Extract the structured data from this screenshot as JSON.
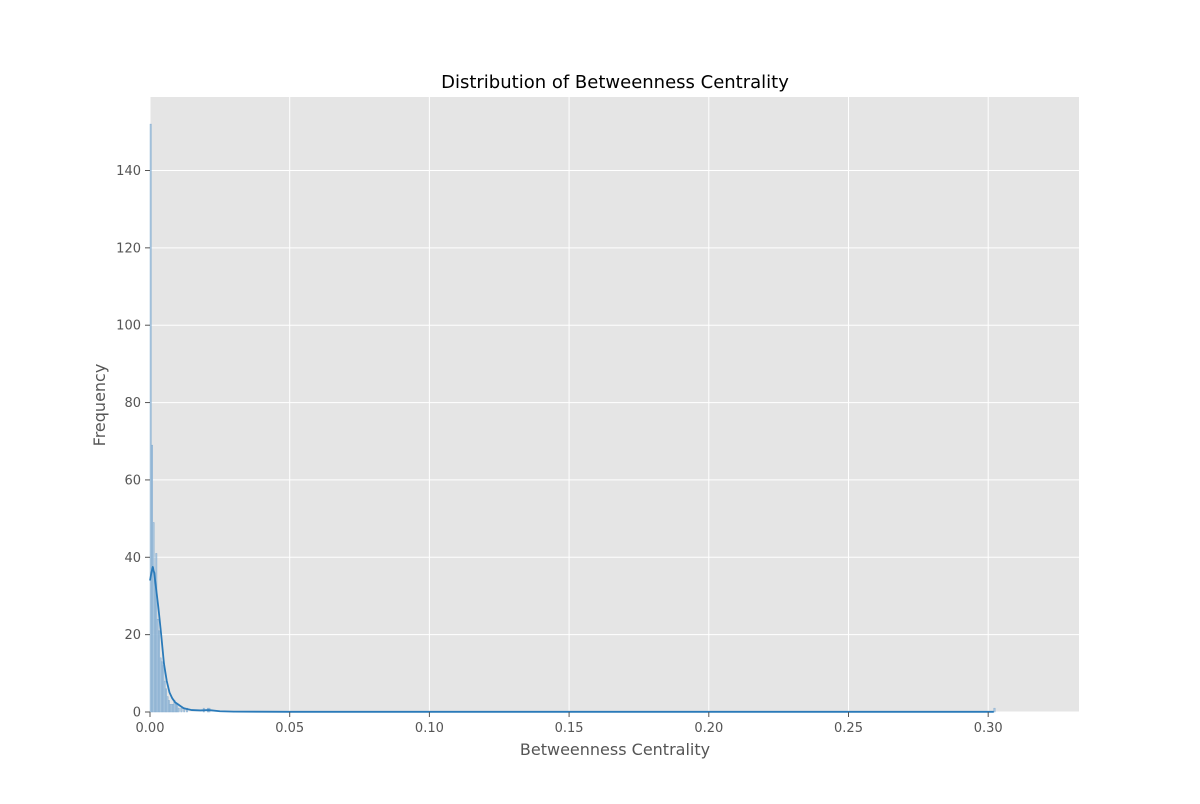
{
  "chart_data": {
    "type": "bar",
    "title": "Distribution of Betweenness Centrality",
    "xlabel": "Betweenness Centrality",
    "ylabel": "Frequency",
    "xlim": [
      0,
      0.3325
    ],
    "ylim": [
      0,
      159
    ],
    "xticks": [
      {
        "value": 0,
        "label": "0.00"
      },
      {
        "value": 0.05,
        "label": "0.05"
      },
      {
        "value": 0.1,
        "label": "0.10"
      },
      {
        "value": 0.15,
        "label": "0.15"
      },
      {
        "value": 0.2,
        "label": "0.20"
      },
      {
        "value": 0.25,
        "label": "0.25"
      },
      {
        "value": 0.3,
        "label": "0.30"
      }
    ],
    "yticks": [
      {
        "value": 0,
        "label": "0"
      },
      {
        "value": 20,
        "label": "20"
      },
      {
        "value": 40,
        "label": "40"
      },
      {
        "value": 60,
        "label": "60"
      },
      {
        "value": 80,
        "label": "80"
      },
      {
        "value": 100,
        "label": "100"
      },
      {
        "value": 120,
        "label": "120"
      },
      {
        "value": 140,
        "label": "140"
      }
    ],
    "grid": true,
    "series": [
      {
        "kind": "histogram",
        "bin_width": 0.0005,
        "bins": [
          {
            "x": 0.0,
            "count": 152
          },
          {
            "x": 0.0005,
            "count": 69
          },
          {
            "x": 0.001,
            "count": 49
          },
          {
            "x": 0.0015,
            "count": 36
          },
          {
            "x": 0.002,
            "count": 41
          },
          {
            "x": 0.0025,
            "count": 24
          },
          {
            "x": 0.003,
            "count": 21
          },
          {
            "x": 0.0035,
            "count": 14
          },
          {
            "x": 0.004,
            "count": 13
          },
          {
            "x": 0.0045,
            "count": 12
          },
          {
            "x": 0.005,
            "count": 8
          },
          {
            "x": 0.0055,
            "count": 6
          },
          {
            "x": 0.006,
            "count": 4
          },
          {
            "x": 0.0065,
            "count": 3
          },
          {
            "x": 0.007,
            "count": 2
          },
          {
            "x": 0.0075,
            "count": 2
          },
          {
            "x": 0.008,
            "count": 2
          },
          {
            "x": 0.0085,
            "count": 3
          },
          {
            "x": 0.009,
            "count": 2
          },
          {
            "x": 0.0095,
            "count": 2
          },
          {
            "x": 0.01,
            "count": 1
          },
          {
            "x": 0.011,
            "count": 1
          },
          {
            "x": 0.012,
            "count": 1
          },
          {
            "x": 0.013,
            "count": 1
          },
          {
            "x": 0.019,
            "count": 1
          },
          {
            "x": 0.0205,
            "count": 1
          },
          {
            "x": 0.021,
            "count": 1
          },
          {
            "x": 0.302,
            "count": 1
          }
        ]
      },
      {
        "kind": "kde",
        "points": [
          [
            0.0,
            34
          ],
          [
            0.0005,
            36
          ],
          [
            0.001,
            37.5
          ],
          [
            0.0015,
            36
          ],
          [
            0.002,
            33
          ],
          [
            0.003,
            27
          ],
          [
            0.004,
            20
          ],
          [
            0.005,
            12.5
          ],
          [
            0.006,
            8
          ],
          [
            0.007,
            5
          ],
          [
            0.008,
            3.5
          ],
          [
            0.009,
            2.5
          ],
          [
            0.01,
            2
          ],
          [
            0.011,
            1.5
          ],
          [
            0.012,
            1
          ],
          [
            0.013,
            0.8
          ],
          [
            0.015,
            0.5
          ],
          [
            0.018,
            0.4
          ],
          [
            0.021,
            0.5
          ],
          [
            0.025,
            0.2
          ],
          [
            0.03,
            0.1
          ],
          [
            0.05,
            0.05
          ],
          [
            0.1,
            0.05
          ],
          [
            0.15,
            0.05
          ],
          [
            0.2,
            0.05
          ],
          [
            0.25,
            0.05
          ],
          [
            0.3,
            0.05
          ],
          [
            0.302,
            0.05
          ]
        ]
      }
    ],
    "colors": {
      "bar_fill": "#9dbfdc",
      "bar_edge": "#7fa8cd",
      "kde_line": "#2a7ab9",
      "plot_bg": "#e5e5e5",
      "grid": "#ffffff",
      "tick_text": "#555555",
      "title_text": "#000000"
    }
  }
}
